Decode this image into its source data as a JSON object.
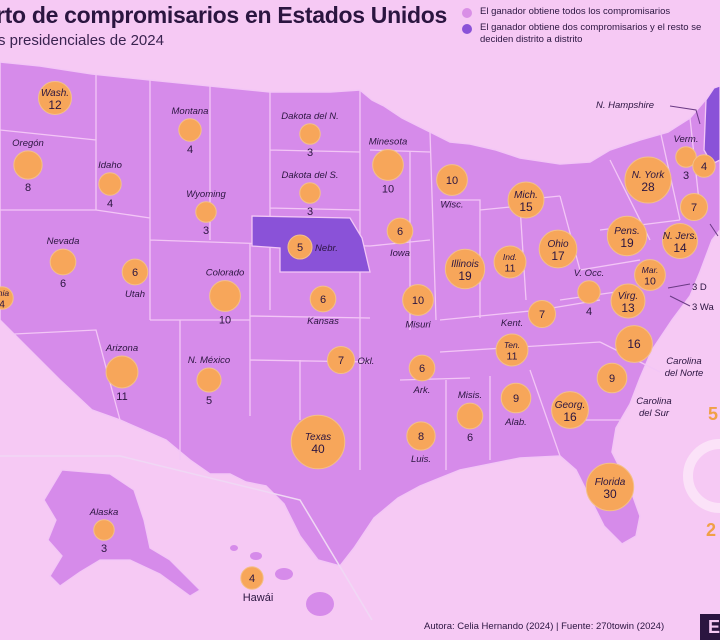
{
  "header": {
    "title": "rto de compromisarios en Estados Unidos",
    "subtitle": "s presidenciales de 2024"
  },
  "legend": [
    {
      "text": "El ganador obtiene todos los compromisarios",
      "color": "#d98fe6"
    },
    {
      "text": "El ganador obtiene dos compromisarios y el resto se deciden distrito a distrito",
      "color": "#8a52d8"
    }
  ],
  "colors": {
    "background": "#f6c9f4",
    "states": "#d68bea",
    "borders": "#f3c6f6",
    "split_states": "#8a52d8",
    "bubble": "#f7a65a",
    "bubble_stroke": "#f3c08a"
  },
  "states": [
    {
      "name": "Wash.",
      "votes": "12"
    },
    {
      "name": "Oregón",
      "votes": "8"
    },
    {
      "name": "Idaho",
      "votes": "4"
    },
    {
      "name": "Montana",
      "votes": "4"
    },
    {
      "name": "Dakota del N.",
      "votes": "3"
    },
    {
      "name": "Dakota del S.",
      "votes": "3"
    },
    {
      "name": "Minesota",
      "votes": "10"
    },
    {
      "name": "Wyoming",
      "votes": "3"
    },
    {
      "name": "Nevada",
      "votes": "6"
    },
    {
      "name": "rnia",
      "votes": "4"
    },
    {
      "name": "Utah",
      "votes": "6"
    },
    {
      "name": "Colorado",
      "votes": "10"
    },
    {
      "name": "Nebr.",
      "votes": "5"
    },
    {
      "name": "Iowa",
      "votes": "6"
    },
    {
      "name": "Wisc.",
      "votes": "10"
    },
    {
      "name": "Mich.",
      "votes": "15"
    },
    {
      "name": "Illinois",
      "votes": "19"
    },
    {
      "name": "Ind.",
      "votes": "11"
    },
    {
      "name": "Ohio",
      "votes": "17"
    },
    {
      "name": "Kansas",
      "votes": "6"
    },
    {
      "name": "Misuri",
      "votes": "10"
    },
    {
      "name": "Arizona",
      "votes": "11"
    },
    {
      "name": "N. México",
      "votes": "5"
    },
    {
      "name": "Okl.",
      "votes": "7"
    },
    {
      "name": "Ark.",
      "votes": "6"
    },
    {
      "name": "Kent.",
      "votes": "7"
    },
    {
      "name": "Ten.",
      "votes": "11"
    },
    {
      "name": "Texas",
      "votes": "40"
    },
    {
      "name": "Misis.",
      "votes": "6"
    },
    {
      "name": "Alab.",
      "votes": "9"
    },
    {
      "name": "Georg.",
      "votes": "16"
    },
    {
      "name": "Luis.",
      "votes": "8"
    },
    {
      "name": "Florida",
      "votes": "30"
    },
    {
      "name": "N. York",
      "votes": "28"
    },
    {
      "name": "Pens.",
      "votes": "19"
    },
    {
      "name": "N. Jers.",
      "votes": "14"
    },
    {
      "name": "V. Occ.",
      "votes": "4"
    },
    {
      "name": "Mar.",
      "votes": "10"
    },
    {
      "name": "Virg.",
      "votes": "13"
    },
    {
      "name": "Verm.",
      "votes": "3"
    },
    {
      "name": "Alaska",
      "votes": "3"
    },
    {
      "name": "Hawái",
      "votes": "4"
    }
  ],
  "unlabeled_bubbles": [
    {
      "votes": "4"
    },
    {
      "votes": "7"
    },
    {
      "votes": "16"
    },
    {
      "votes": "9"
    }
  ],
  "region_labels": {
    "carolina_norte": "Carolina del Norte",
    "carolina_sur": "Carolina del Sur",
    "new_hampshire": "N. Hampshire",
    "delaware": "3 D",
    "washington_dc": "3 Wa"
  },
  "side_numbers": {
    "top": "5",
    "bottom": "2"
  },
  "footer": {
    "credit": "Autora: Celia Hernando (2024) | Fuente: 270towin (2024)",
    "logo": "E"
  }
}
